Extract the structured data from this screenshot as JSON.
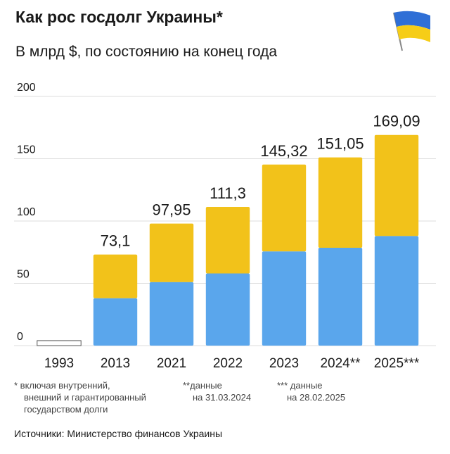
{
  "chart_data": {
    "type": "bar",
    "title": "Как рос госдолг Украины*",
    "subtitle": "В млрд $, по состоянию на конец года",
    "categories": [
      "1993",
      "2013",
      "2021",
      "2022",
      "2023",
      "2024**",
      "2025***"
    ],
    "values": [
      4,
      73.1,
      97.95,
      111.3,
      145.32,
      151.05,
      169.09
    ],
    "value_labels": [
      null,
      "73,1",
      "97,95",
      "111,3",
      "145,32",
      "151,05",
      "169,09"
    ],
    "colors": {
      "top": "#f2c21a",
      "bottom": "#5aa6ec"
    },
    "ylim": [
      0,
      200
    ],
    "yticks": [
      0,
      50,
      100,
      150,
      200
    ],
    "grid": true,
    "footnotes": [
      "* включая внутренний,",
      "внешний и гарантированный",
      "государством долги",
      "**данные",
      "на 31.03.2024",
      "*** данные",
      "на 28.02.2025"
    ],
    "source": "Источники: Министерство финансов Украины"
  }
}
